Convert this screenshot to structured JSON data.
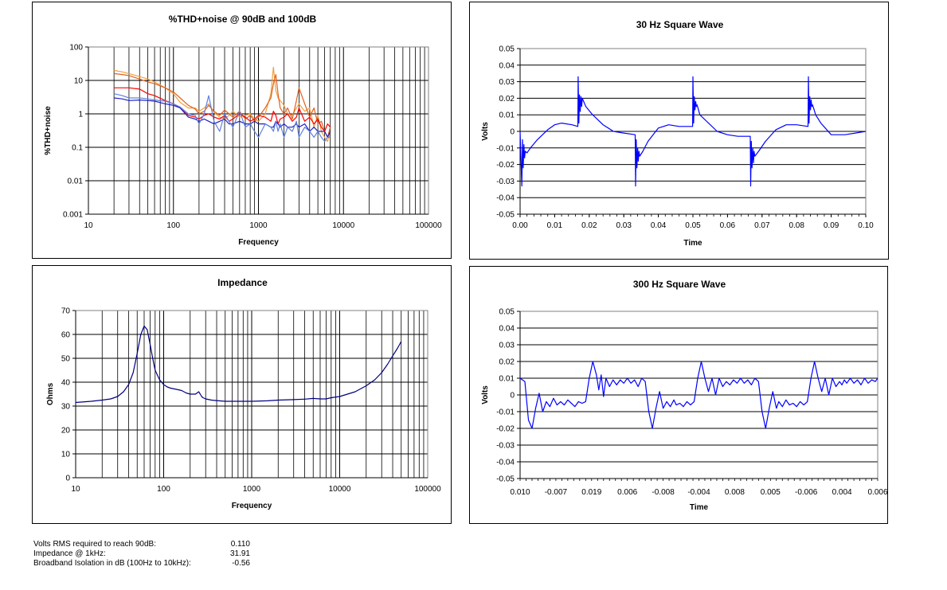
{
  "chart_data": [
    {
      "id": "thd",
      "type": "line",
      "title": "%THD+noise @ 90dB and 100dB",
      "xlabel": "Frequency",
      "ylabel": "%THD+noise",
      "xscale": "log",
      "yscale": "log",
      "xlim": [
        10,
        100000
      ],
      "ylim": [
        0.001,
        100
      ],
      "x_ticks": [
        10,
        100,
        1000,
        10000,
        100000
      ],
      "x_tick_labels": [
        "10",
        "100",
        "1000",
        "10000",
        "100000"
      ],
      "y_ticks": [
        0.001,
        0.01,
        0.1,
        1,
        10,
        100
      ],
      "y_tick_labels": [
        "0.001",
        "0.01",
        "0.1",
        "1",
        "10",
        "100"
      ],
      "grid": true,
      "series": [
        {
          "color": "#f0a040",
          "x": [
            20,
            25,
            30,
            40,
            50,
            60,
            80,
            100,
            120,
            150,
            180,
            200,
            230,
            260,
            300,
            350,
            400,
            450,
            500,
            600,
            700,
            800,
            900,
            1000,
            1200,
            1400,
            1500,
            1600,
            1700,
            1800,
            2000,
            2200,
            2500,
            2800,
            3000,
            3500,
            4000,
            4500,
            5000,
            5500,
            6000,
            6500,
            7000
          ],
          "y": [
            20,
            18,
            16,
            13,
            11,
            9,
            6,
            4,
            2.2,
            1.5,
            1.5,
            1.2,
            1.5,
            2.0,
            1.1,
            0.8,
            0.7,
            0.9,
            1.2,
            0.8,
            0.9,
            1.0,
            0.7,
            0.6,
            1.0,
            4.0,
            25,
            5.0,
            3.0,
            2.5,
            1.8,
            1.0,
            0.9,
            1.5,
            2.0,
            1.2,
            1.5,
            0.4,
            0.9,
            0.3,
            0.2,
            0.15,
            0.3
          ]
        },
        {
          "color": "#e06020",
          "x": [
            20,
            25,
            30,
            40,
            50,
            60,
            80,
            100,
            120,
            150,
            180,
            200,
            230,
            260,
            300,
            350,
            400,
            450,
            500,
            600,
            700,
            800,
            900,
            1000,
            1200,
            1400,
            1500,
            1600,
            1700,
            1800,
            2000,
            2200,
            2500,
            2800,
            3000,
            3500,
            4000,
            4500,
            5000,
            5500,
            6000,
            6500,
            7000
          ],
          "y": [
            16,
            15,
            14,
            11,
            9,
            8,
            6,
            4.5,
            3,
            1.8,
            1.4,
            1.0,
            1.2,
            1.8,
            1.2,
            0.9,
            1.3,
            1.0,
            0.8,
            1.2,
            0.7,
            0.9,
            0.6,
            0.8,
            1.5,
            3.0,
            8.0,
            15,
            4.0,
            1.5,
            1.0,
            1.5,
            0.7,
            2.5,
            6.0,
            2.0,
            0.8,
            1.5,
            0.5,
            0.6,
            0.3,
            0.2,
            0.4
          ]
        },
        {
          "color": "#ff0000",
          "x": [
            20,
            25,
            30,
            40,
            50,
            60,
            80,
            100,
            120,
            150,
            180,
            200,
            230,
            260,
            300,
            350,
            400,
            450,
            500,
            600,
            700,
            800,
            900,
            1000,
            1200,
            1400,
            1500,
            1600,
            1700,
            1800,
            2000,
            2200,
            2500,
            2800,
            3000,
            3500,
            4000,
            4500,
            5000,
            5500,
            6000,
            6500,
            7000
          ],
          "y": [
            6,
            6,
            6,
            5.5,
            4,
            3.5,
            2.5,
            2.0,
            1.5,
            0.9,
            0.8,
            0.7,
            0.9,
            1.0,
            0.8,
            0.7,
            0.9,
            0.6,
            0.7,
            1.0,
            0.8,
            0.6,
            0.7,
            0.9,
            0.8,
            0.6,
            1.2,
            0.9,
            0.5,
            0.7,
            0.8,
            1.0,
            0.6,
            0.8,
            1.5,
            0.6,
            0.8,
            0.5,
            0.7,
            0.4,
            0.3,
            0.5,
            0.4
          ]
        },
        {
          "color": "#2020c0",
          "x": [
            20,
            25,
            30,
            40,
            50,
            60,
            80,
            100,
            120,
            150,
            180,
            200,
            230,
            260,
            300,
            350,
            400,
            450,
            500,
            600,
            700,
            800,
            900,
            1000,
            1200,
            1400,
            1500,
            1600,
            1700,
            1800,
            2000,
            2200,
            2500,
            2800,
            3000,
            3500,
            4000,
            4500,
            5000,
            5500,
            6000,
            6500,
            7000
          ],
          "y": [
            3,
            2.8,
            2.5,
            2.6,
            2.5,
            2.4,
            2.0,
            1.8,
            1.5,
            0.8,
            0.7,
            0.6,
            0.7,
            0.6,
            0.5,
            0.6,
            0.7,
            0.5,
            0.5,
            0.6,
            0.5,
            0.5,
            0.6,
            0.5,
            0.5,
            0.4,
            0.4,
            0.6,
            0.5,
            0.4,
            0.5,
            0.4,
            0.4,
            0.5,
            0.4,
            0.5,
            0.3,
            0.4,
            0.3,
            0.3,
            0.3,
            0.2,
            0.3
          ]
        },
        {
          "color": "#6080e0",
          "x": [
            20,
            25,
            30,
            40,
            50,
            60,
            80,
            100,
            120,
            150,
            180,
            200,
            230,
            260,
            300,
            350,
            400,
            450,
            500,
            600,
            700,
            800,
            900,
            1000,
            1200,
            1400,
            1500,
            1600,
            1700,
            1800,
            2000,
            2200,
            2500,
            2800,
            3000,
            3500,
            4000,
            4500,
            5000,
            5500,
            6000,
            6500,
            7000
          ],
          "y": [
            4,
            3.5,
            3.0,
            3.0,
            2.8,
            2.6,
            2.4,
            2.0,
            1.6,
            1.0,
            0.9,
            0.5,
            1.0,
            3.5,
            0.6,
            0.3,
            1.0,
            0.6,
            0.4,
            1.2,
            0.4,
            0.5,
            0.3,
            0.2,
            0.5,
            0.4,
            0.3,
            0.6,
            0.3,
            0.5,
            0.2,
            0.4,
            0.3,
            0.6,
            0.2,
            0.4,
            0.3,
            0.2,
            0.3,
            0.2,
            0.15,
            0.2,
            0.2
          ]
        }
      ]
    },
    {
      "id": "sq30",
      "type": "line",
      "title": "30 Hz Square Wave",
      "xlabel": "Time",
      "ylabel": "Volts",
      "xlim": [
        0.0,
        0.1
      ],
      "ylim": [
        -0.05,
        0.05
      ],
      "x_ticks": [
        0.0,
        0.01,
        0.02,
        0.03,
        0.04,
        0.05,
        0.06,
        0.07,
        0.08,
        0.09,
        0.1
      ],
      "x_tick_labels": [
        "0.00",
        "0.01",
        "0.02",
        "0.03",
        "0.04",
        "0.05",
        "0.06",
        "0.07",
        "0.08",
        "0.09",
        "0.10"
      ],
      "y_ticks": [
        -0.05,
        -0.04,
        -0.03,
        -0.02,
        -0.01,
        0,
        0.01,
        0.02,
        0.03,
        0.04,
        0.05
      ],
      "y_tick_labels": [
        "-0.05",
        "-0.04",
        "-0.03",
        "-0.02",
        "-0.01",
        "0",
        "0.01",
        "0.02",
        "0.03",
        "0.04",
        "0.05"
      ],
      "grid": true,
      "color": "#0000ff",
      "x": [
        0.0,
        0.0005,
        0.0007,
        0.0009,
        0.0011,
        0.0013,
        0.0015,
        0.002,
        0.003,
        0.005,
        0.008,
        0.01,
        0.012,
        0.015,
        0.0167,
        0.0168,
        0.017,
        0.0172,
        0.0174,
        0.0176,
        0.0178,
        0.018,
        0.019,
        0.021,
        0.024,
        0.027,
        0.03,
        0.0333,
        0.0334,
        0.0336,
        0.0338,
        0.034,
        0.0342,
        0.0344,
        0.0346,
        0.0355,
        0.037,
        0.04,
        0.043,
        0.046,
        0.0499,
        0.05,
        0.0502,
        0.0504,
        0.0506,
        0.0508,
        0.051,
        0.0512,
        0.052,
        0.054,
        0.057,
        0.06,
        0.063,
        0.0666,
        0.0667,
        0.0669,
        0.0671,
        0.0673,
        0.0675,
        0.0677,
        0.0679,
        0.069,
        0.071,
        0.074,
        0.077,
        0.08,
        0.0833,
        0.0834,
        0.0836,
        0.0838,
        0.084,
        0.0842,
        0.0844,
        0.0846,
        0.0855,
        0.087,
        0.09,
        0.094,
        0.097,
        0.1
      ],
      "y": [
        0,
        -0.033,
        -0.005,
        -0.022,
        -0.008,
        -0.016,
        -0.012,
        -0.013,
        -0.01,
        -0.005,
        0.001,
        0.004,
        0.005,
        0.004,
        0.003,
        0.033,
        0.005,
        0.022,
        0.012,
        0.021,
        0.015,
        0.02,
        0.015,
        0.01,
        0.004,
        0.0,
        -0.001,
        -0.002,
        -0.033,
        -0.005,
        -0.022,
        -0.01,
        -0.018,
        -0.012,
        -0.015,
        -0.012,
        -0.006,
        0.002,
        0.004,
        0.003,
        0.003,
        0.033,
        0.005,
        0.021,
        0.013,
        0.018,
        0.015,
        0.016,
        0.01,
        0.006,
        0.0,
        -0.002,
        -0.003,
        -0.003,
        -0.033,
        -0.006,
        -0.022,
        -0.01,
        -0.019,
        -0.012,
        -0.015,
        -0.012,
        -0.006,
        0.001,
        0.004,
        0.004,
        0.003,
        0.033,
        0.005,
        0.021,
        0.013,
        0.019,
        0.015,
        0.016,
        0.01,
        0.005,
        -0.002,
        -0.002,
        -0.001,
        0.0
      ]
    },
    {
      "id": "imp",
      "type": "line",
      "title": "Impedance",
      "xlabel": "Frequency",
      "ylabel": "Ohms",
      "xscale": "log",
      "xlim": [
        10,
        100000
      ],
      "ylim": [
        0,
        70
      ],
      "x_ticks": [
        10,
        100,
        1000,
        10000,
        100000
      ],
      "x_tick_labels": [
        "10",
        "100",
        "1000",
        "10000",
        "100000"
      ],
      "y_ticks": [
        0,
        10,
        20,
        30,
        40,
        50,
        60,
        70
      ],
      "y_tick_labels": [
        "0",
        "10",
        "20",
        "30",
        "40",
        "50",
        "60",
        "70"
      ],
      "grid": true,
      "color": "#000080",
      "x": [
        10,
        15,
        20,
        25,
        30,
        35,
        40,
        45,
        50,
        55,
        60,
        65,
        70,
        75,
        80,
        90,
        100,
        110,
        120,
        140,
        160,
        180,
        200,
        230,
        250,
        260,
        270,
        280,
        300,
        350,
        400,
        500,
        700,
        1000,
        1500,
        2000,
        3000,
        4000,
        5000,
        6000,
        7000,
        8000,
        10000,
        15000,
        20000,
        25000,
        30000,
        35000,
        40000,
        45000,
        50000
      ],
      "y": [
        31.5,
        32,
        32.5,
        33,
        34,
        36,
        39,
        44,
        52,
        60,
        63.5,
        62,
        56,
        50,
        45,
        41,
        39,
        38,
        37.5,
        37,
        36.5,
        35.5,
        35,
        35,
        36,
        35,
        34,
        33.5,
        33,
        32.5,
        32.3,
        32,
        32,
        32,
        32.2,
        32.5,
        32.7,
        32.9,
        33.2,
        33,
        33,
        33.5,
        34,
        36,
        38.5,
        41,
        44,
        47.5,
        51,
        54,
        57
      ]
    },
    {
      "id": "sq300",
      "type": "line",
      "title": "300 Hz Square Wave",
      "xlabel": "Time",
      "ylabel": "Volts",
      "xlim": [
        0,
        15
      ],
      "ylim": [
        -0.05,
        0.05
      ],
      "x_tick_labels": [
        "0.010",
        "-0.007",
        "0.019",
        "0.006",
        "-0.008",
        "-0.004",
        "0.008",
        "0.005",
        "-0.006",
        "0.004",
        "0.006"
      ],
      "y_ticks": [
        -0.05,
        -0.04,
        -0.03,
        -0.02,
        -0.01,
        0,
        0.01,
        0.02,
        0.03,
        0.04,
        0.05
      ],
      "y_tick_labels": [
        "-0.05",
        "-0.04",
        "-0.03",
        "-0.02",
        "-0.01",
        "0",
        "0.01",
        "0.02",
        "0.03",
        "0.04",
        "0.05"
      ],
      "grid": true,
      "color": "#0000ff",
      "x": [
        0.0,
        0.2,
        0.35,
        0.5,
        0.65,
        0.8,
        0.95,
        1.1,
        1.25,
        1.4,
        1.55,
        1.7,
        1.85,
        2.0,
        2.15,
        2.3,
        2.45,
        2.6,
        2.75,
        2.9,
        3.05,
        3.2,
        3.3,
        3.4,
        3.5,
        3.6,
        3.75,
        3.9,
        4.05,
        4.2,
        4.35,
        4.5,
        4.65,
        4.8,
        4.95,
        5.1,
        5.25,
        5.4,
        5.55,
        5.7,
        5.85,
        6.0,
        6.15,
        6.3,
        6.45,
        6.55,
        6.7,
        6.85,
        7.0,
        7.15,
        7.3,
        7.45,
        7.6,
        7.75,
        7.9,
        8.05,
        8.2,
        8.35,
        8.5,
        8.65,
        8.8,
        8.95,
        9.1,
        9.25,
        9.4,
        9.55,
        9.7,
        9.85,
        10.0,
        10.15,
        10.3,
        10.45,
        10.6,
        10.75,
        10.85,
        11.0,
        11.15,
        11.3,
        11.45,
        11.6,
        11.75,
        11.9,
        12.05,
        12.2,
        12.35,
        12.5,
        12.65,
        12.8,
        12.95,
        13.1,
        13.25,
        13.4,
        13.5,
        13.6,
        13.7,
        13.85,
        14.0,
        14.15,
        14.3,
        14.45,
        14.6,
        14.75,
        14.9,
        15.0
      ],
      "y": [
        0.01,
        0.008,
        -0.015,
        -0.02,
        -0.008,
        0.001,
        -0.01,
        -0.004,
        -0.007,
        -0.002,
        -0.006,
        -0.004,
        -0.006,
        -0.003,
        -0.005,
        -0.007,
        -0.004,
        -0.005,
        -0.004,
        0.01,
        0.02,
        0.012,
        0.003,
        0.012,
        -0.001,
        0.01,
        0.005,
        0.009,
        0.006,
        0.009,
        0.007,
        0.01,
        0.007,
        0.009,
        0.005,
        0.01,
        0.008,
        -0.01,
        -0.02,
        -0.008,
        0.002,
        -0.008,
        -0.004,
        -0.007,
        -0.003,
        -0.006,
        -0.005,
        -0.007,
        -0.004,
        -0.006,
        -0.004,
        0.01,
        0.02,
        0.01,
        0.002,
        0.01,
        0.0,
        0.01,
        0.005,
        0.008,
        0.006,
        0.009,
        0.007,
        0.01,
        0.007,
        0.009,
        0.006,
        0.01,
        0.008,
        -0.01,
        -0.02,
        -0.008,
        0.002,
        -0.008,
        -0.004,
        -0.007,
        -0.003,
        -0.006,
        -0.005,
        -0.007,
        -0.004,
        -0.006,
        -0.004,
        0.01,
        0.02,
        0.01,
        0.002,
        0.01,
        0.0,
        0.01,
        0.005,
        0.008,
        0.006,
        0.009,
        0.007,
        0.01,
        0.007,
        0.009,
        0.006,
        0.01,
        0.007,
        0.009,
        0.008,
        0.01
      ]
    }
  ],
  "stats": [
    {
      "label": "Volts RMS required to reach 90dB:",
      "value": "0.110"
    },
    {
      "label": "Impedance @ 1kHz:",
      "value": "31.91"
    },
    {
      "label": "Broadband Isolation in dB (100Hz to 10kHz):",
      "value": "-0.56"
    }
  ]
}
